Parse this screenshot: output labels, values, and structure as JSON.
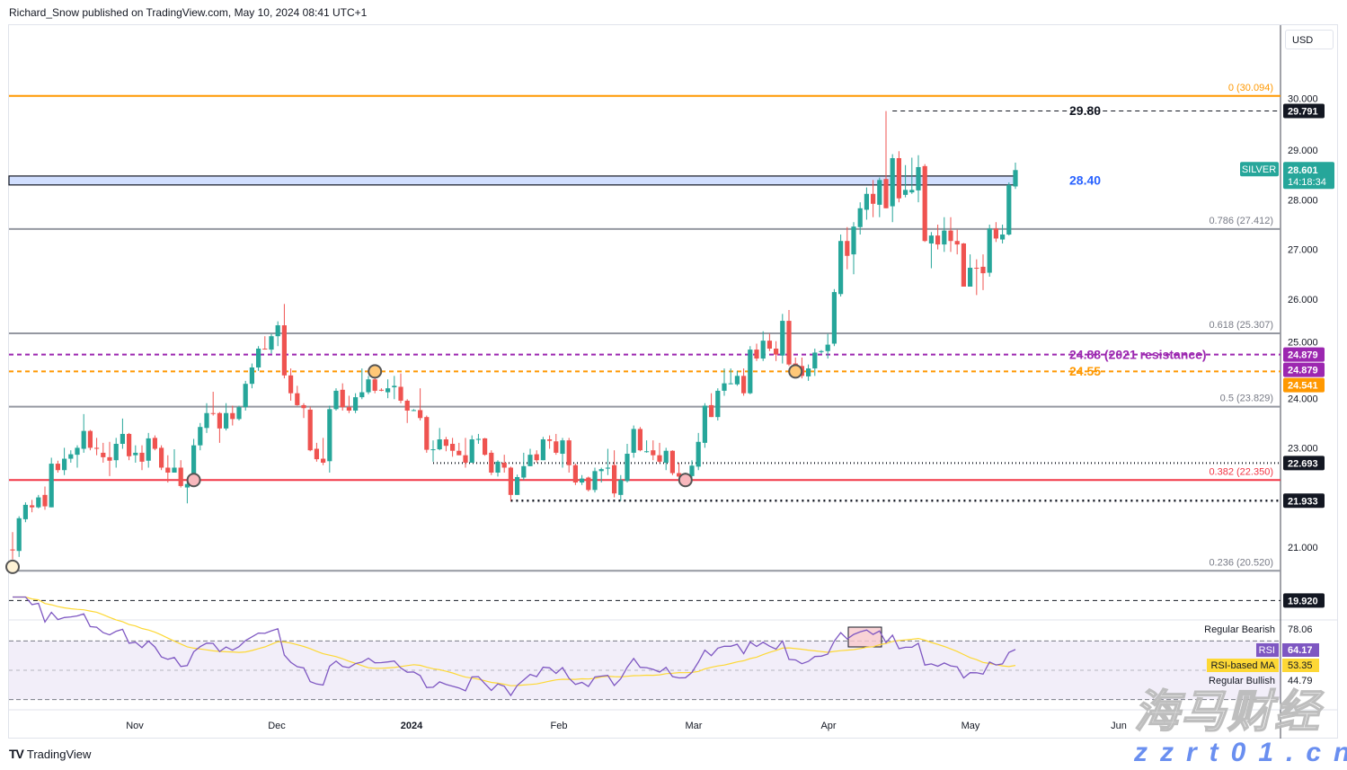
{
  "header": {
    "text": "Richard_Snow published on TradingView.com, May 10, 2024 08:41 UTC+1"
  },
  "footer": {
    "logo": "TV",
    "brand": "TradingView"
  },
  "currency": "USD",
  "watermark": {
    "line1": "海马财经",
    "line2": "zzrt01.cn"
  },
  "chart_data": [
    {
      "type": "candlestick",
      "symbol": "SILVER",
      "last_price": "28.601",
      "countdown": "14:18:34",
      "colors": {
        "up": "#26a69a",
        "down": "#ef5350"
      },
      "y_ticks": [
        "30.000",
        "29.000",
        "28.000",
        "27.000",
        "26.000",
        "25.000",
        "24.000",
        "23.000",
        "21.000"
      ],
      "x_ticks": [
        {
          "label": "Nov",
          "bold": false
        },
        {
          "label": "Dec",
          "bold": false
        },
        {
          "label": "2024",
          "bold": true
        },
        {
          "label": "Feb",
          "bold": false
        },
        {
          "label": "Mar",
          "bold": false
        },
        {
          "label": "Apr",
          "bold": false
        },
        {
          "label": "May",
          "bold": false
        },
        {
          "label": "Jun",
          "bold": false
        }
      ],
      "ohlc_fields": [
        "open",
        "high",
        "low",
        "close"
      ],
      "candles": [
        [
          20.95,
          21.3,
          20.75,
          20.93
        ],
        [
          20.92,
          21.62,
          20.8,
          21.58
        ],
        [
          21.56,
          21.9,
          21.5,
          21.85
        ],
        [
          21.84,
          21.95,
          21.7,
          21.8
        ],
        [
          21.8,
          22.05,
          21.78,
          22.0
        ],
        [
          22.05,
          22.22,
          21.75,
          21.82
        ],
        [
          21.8,
          22.8,
          21.8,
          22.68
        ],
        [
          22.68,
          22.74,
          22.5,
          22.55
        ],
        [
          22.55,
          23.0,
          22.45,
          22.78
        ],
        [
          22.78,
          22.95,
          22.7,
          22.87
        ],
        [
          22.86,
          23.05,
          22.6,
          23.0
        ],
        [
          22.98,
          23.68,
          22.9,
          23.34
        ],
        [
          23.34,
          23.36,
          22.95,
          23.0
        ],
        [
          23.0,
          23.2,
          22.85,
          22.98
        ],
        [
          22.9,
          23.1,
          22.7,
          22.81
        ],
        [
          22.81,
          23.12,
          22.43,
          22.74
        ],
        [
          22.75,
          23.2,
          22.6,
          23.08
        ],
        [
          23.08,
          23.59,
          22.98,
          23.28
        ],
        [
          23.28,
          23.3,
          22.75,
          22.83
        ],
        [
          22.85,
          23.05,
          22.7,
          22.9
        ],
        [
          22.9,
          23.05,
          22.55,
          22.72
        ],
        [
          22.74,
          23.3,
          22.6,
          23.19
        ],
        [
          23.2,
          23.25,
          22.95,
          22.98
        ],
        [
          23.0,
          23.05,
          22.55,
          22.6
        ],
        [
          22.6,
          22.85,
          22.3,
          22.5
        ],
        [
          22.5,
          22.97,
          22.5,
          22.6
        ],
        [
          22.6,
          22.75,
          22.2,
          22.23
        ],
        [
          22.2,
          22.35,
          21.88,
          22.27
        ],
        [
          22.25,
          23.18,
          22.25,
          23.05
        ],
        [
          23.05,
          23.5,
          22.95,
          23.42
        ],
        [
          23.4,
          23.9,
          23.3,
          23.7
        ],
        [
          23.7,
          24.13,
          23.65,
          23.69
        ],
        [
          23.7,
          23.72,
          23.1,
          23.39
        ],
        [
          23.39,
          23.9,
          23.35,
          23.7
        ],
        [
          23.7,
          23.85,
          23.45,
          23.58
        ],
        [
          23.58,
          23.85,
          23.55,
          23.82
        ],
        [
          23.82,
          24.35,
          23.75,
          24.29
        ],
        [
          24.29,
          24.7,
          24.2,
          24.62
        ],
        [
          24.62,
          25.05,
          24.55,
          25.0
        ],
        [
          25.0,
          25.25,
          24.98,
          24.99
        ],
        [
          24.98,
          25.3,
          24.9,
          25.25
        ],
        [
          25.25,
          25.55,
          25.05,
          25.47
        ],
        [
          25.47,
          25.9,
          24.4,
          24.46
        ],
        [
          24.46,
          24.6,
          23.95,
          24.1
        ],
        [
          24.1,
          24.25,
          23.85,
          23.86
        ],
        [
          23.86,
          23.9,
          23.6,
          23.8
        ],
        [
          23.77,
          23.83,
          22.93,
          22.95
        ],
        [
          22.98,
          23.1,
          22.72,
          22.77
        ],
        [
          22.78,
          23.2,
          22.65,
          22.7
        ],
        [
          22.73,
          23.85,
          22.5,
          23.78
        ],
        [
          23.78,
          24.2,
          23.75,
          24.15
        ],
        [
          24.17,
          24.3,
          23.75,
          23.82
        ],
        [
          23.82,
          24.05,
          23.7,
          23.75
        ],
        [
          23.75,
          24.1,
          23.7,
          24.02
        ],
        [
          24.02,
          24.6,
          23.98,
          24.12
        ],
        [
          24.12,
          24.45,
          24.08,
          24.38
        ],
        [
          24.38,
          24.44,
          24.1,
          24.15
        ],
        [
          24.17,
          24.2,
          24.14,
          24.16
        ],
        [
          24.12,
          24.38,
          24.0,
          24.2
        ],
        [
          24.22,
          24.45,
          23.98,
          24.25
        ],
        [
          24.23,
          24.5,
          23.9,
          23.95
        ],
        [
          23.95,
          23.98,
          23.5,
          23.75
        ],
        [
          23.76,
          23.78,
          23.74,
          23.76
        ],
        [
          23.76,
          24.2,
          23.55,
          23.6
        ],
        [
          23.62,
          23.65,
          22.9,
          22.96
        ],
        [
          22.97,
          23.15,
          22.72,
          22.97
        ],
        [
          22.97,
          23.4,
          22.95,
          23.17
        ],
        [
          23.17,
          23.22,
          22.93,
          23.04
        ],
        [
          23.08,
          23.2,
          22.82,
          22.94
        ],
        [
          22.94,
          23.1,
          22.85,
          22.85
        ],
        [
          22.85,
          23.2,
          22.6,
          22.7
        ],
        [
          22.7,
          23.25,
          22.7,
          23.17
        ],
        [
          23.16,
          23.28,
          23.08,
          23.18
        ],
        [
          23.19,
          23.2,
          22.84,
          22.86
        ],
        [
          22.9,
          22.95,
          22.45,
          22.5
        ],
        [
          22.5,
          22.75,
          22.42,
          22.72
        ],
        [
          22.7,
          22.86,
          22.5,
          22.6
        ],
        [
          22.6,
          22.62,
          21.93,
          22.05
        ],
        [
          22.05,
          22.46,
          22.05,
          22.41
        ],
        [
          22.4,
          22.9,
          22.35,
          22.63
        ],
        [
          22.63,
          22.98,
          22.63,
          22.86
        ],
        [
          22.87,
          22.95,
          22.7,
          22.75
        ],
        [
          22.75,
          23.22,
          22.75,
          23.17
        ],
        [
          23.17,
          23.25,
          22.98,
          23.14
        ],
        [
          23.13,
          23.28,
          22.86,
          22.9
        ],
        [
          22.88,
          23.2,
          22.6,
          23.15
        ],
        [
          23.15,
          23.2,
          22.5,
          22.65
        ],
        [
          22.65,
          22.68,
          22.25,
          22.3
        ],
        [
          22.3,
          22.45,
          22.25,
          22.38
        ],
        [
          22.4,
          22.42,
          22.12,
          22.15
        ],
        [
          22.15,
          22.6,
          22.1,
          22.53
        ],
        [
          22.53,
          22.6,
          22.3,
          22.57
        ],
        [
          22.58,
          22.98,
          22.45,
          22.6
        ],
        [
          22.65,
          22.95,
          22.0,
          22.08
        ],
        [
          22.05,
          22.45,
          21.93,
          22.35
        ],
        [
          22.33,
          23.08,
          22.3,
          22.88
        ],
        [
          22.9,
          23.45,
          22.8,
          23.38
        ],
        [
          23.38,
          23.42,
          22.93,
          22.95
        ],
        [
          22.93,
          23.15,
          22.9,
          22.93
        ],
        [
          22.95,
          23.15,
          22.75,
          22.85
        ],
        [
          22.85,
          23.1,
          22.7,
          22.72
        ],
        [
          22.7,
          23.0,
          22.55,
          22.94
        ],
        [
          22.94,
          22.95,
          22.45,
          22.49
        ],
        [
          22.49,
          22.7,
          22.4,
          22.42
        ],
        [
          22.43,
          22.5,
          22.4,
          22.43
        ],
        [
          22.43,
          22.75,
          22.33,
          22.64
        ],
        [
          22.62,
          23.3,
          22.55,
          23.12
        ],
        [
          23.1,
          23.9,
          23.0,
          23.85
        ],
        [
          23.86,
          24.1,
          23.62,
          23.62
        ],
        [
          23.62,
          24.2,
          23.55,
          24.15
        ],
        [
          24.15,
          24.6,
          24.05,
          24.3
        ],
        [
          24.3,
          24.6,
          24.28,
          24.3
        ],
        [
          24.28,
          24.55,
          24.25,
          24.45
        ],
        [
          24.45,
          24.6,
          24.05,
          24.1
        ],
        [
          24.1,
          25.05,
          24.08,
          24.98
        ],
        [
          24.98,
          25.1,
          24.75,
          24.8
        ],
        [
          24.8,
          25.35,
          24.75,
          25.16
        ],
        [
          25.16,
          25.3,
          24.95,
          25.0
        ],
        [
          25.0,
          25.15,
          24.75,
          24.88
        ],
        [
          24.86,
          25.7,
          24.7,
          25.56
        ],
        [
          25.56,
          25.78,
          24.65,
          24.68
        ],
        [
          24.7,
          24.82,
          24.5,
          24.65
        ],
        [
          24.65,
          24.82,
          24.4,
          24.45
        ],
        [
          24.44,
          24.68,
          24.35,
          24.6
        ],
        [
          24.6,
          25.0,
          24.45,
          24.92
        ],
        [
          24.93,
          24.97,
          24.9,
          24.95
        ],
        [
          24.95,
          25.3,
          24.8,
          25.08
        ],
        [
          25.1,
          26.2,
          25.05,
          26.14
        ],
        [
          26.1,
          27.3,
          26.05,
          27.17
        ],
        [
          27.17,
          27.45,
          26.6,
          26.87
        ],
        [
          26.9,
          27.55,
          26.5,
          27.46
        ],
        [
          27.45,
          27.95,
          27.3,
          27.83
        ],
        [
          27.8,
          28.25,
          27.6,
          28.12
        ],
        [
          28.12,
          28.4,
          27.65,
          27.92
        ],
        [
          27.9,
          28.45,
          27.65,
          28.4
        ],
        [
          28.42,
          29.79,
          27.83,
          27.83
        ],
        [
          27.87,
          28.92,
          27.55,
          28.84
        ],
        [
          28.84,
          28.98,
          27.95,
          28.03
        ],
        [
          28.1,
          28.7,
          28.05,
          28.2
        ],
        [
          28.15,
          28.85,
          28.12,
          28.2
        ],
        [
          28.19,
          28.9,
          27.95,
          28.66
        ],
        [
          28.68,
          28.72,
          27.15,
          27.17
        ],
        [
          27.12,
          27.35,
          26.62,
          27.28
        ],
        [
          27.28,
          27.5,
          27.0,
          27.1
        ],
        [
          27.1,
          27.65,
          26.95,
          27.38
        ],
        [
          27.38,
          27.65,
          26.95,
          27.17
        ],
        [
          27.17,
          27.4,
          26.9,
          27.1
        ],
        [
          27.12,
          27.13,
          26.25,
          26.25
        ],
        [
          26.25,
          26.9,
          26.25,
          26.63
        ],
        [
          26.63,
          26.8,
          26.08,
          26.62
        ],
        [
          26.65,
          26.9,
          26.18,
          26.52
        ],
        [
          26.53,
          27.5,
          26.45,
          27.42
        ],
        [
          27.42,
          27.55,
          27.15,
          27.22
        ],
        [
          27.2,
          27.5,
          27.12,
          27.3
        ],
        [
          27.3,
          28.35,
          27.28,
          28.3
        ],
        [
          28.27,
          28.75,
          28.22,
          28.6
        ]
      ],
      "levels": [
        {
          "price": 30.094,
          "label": "0 (30.094)",
          "style": "solid",
          "color": "#ff9800",
          "kind": "fib"
        },
        {
          "price": 27.412,
          "label": "0.786 (27.412)",
          "style": "solid",
          "color": "#9598a1",
          "kind": "fib"
        },
        {
          "price": 25.307,
          "label": "0.618 (25.307)",
          "style": "solid",
          "color": "#9598a1",
          "kind": "fib"
        },
        {
          "price": 23.829,
          "label": "0.5 (23.829)",
          "style": "solid",
          "color": "#9598a1",
          "kind": "fib"
        },
        {
          "price": 22.35,
          "label": "0.382 (22.350)",
          "style": "solid",
          "color": "#f23645",
          "kind": "fib"
        },
        {
          "price": 20.52,
          "label": "0.236 (20.520)",
          "style": "solid",
          "color": "#9598a1",
          "kind": "fib"
        }
      ],
      "annotations": [
        {
          "text": "29.80",
          "color": "#131722",
          "price": 29.8
        },
        {
          "text": "28.40",
          "color": "#2962ff",
          "price": 28.4
        },
        {
          "text": "24.88 (2021 resistance)",
          "color": "#9c27b0",
          "price": 24.88
        },
        {
          "text": "24.55",
          "color": "#ff9800",
          "price": 24.55
        }
      ],
      "zone": {
        "label": "28.40",
        "top": 28.48,
        "bottom": 28.3,
        "color": "#d1dfff"
      },
      "price_tags": [
        {
          "text": "29.791",
          "bg": "#131722",
          "price": 29.791
        },
        {
          "text": "24.879",
          "bg": "#9c27b0",
          "price": 24.879
        },
        {
          "text": "24.879",
          "bg": "#9c27b0",
          "price": 24.879
        },
        {
          "text": "24.541",
          "bg": "#ff9800",
          "price": 24.541
        },
        {
          "text": "22.693",
          "bg": "#131722",
          "price": 22.693
        },
        {
          "text": "21.933",
          "bg": "#131722",
          "price": 21.933
        },
        {
          "text": "19.920",
          "bg": "#131722",
          "price": 19.92
        }
      ],
      "dashed_lines": [
        {
          "price": 29.791,
          "color": "#131722",
          "style": "dashed",
          "from_candle": 136
        },
        {
          "price": 24.879,
          "color": "#9c27b0",
          "style": "dashed",
          "from_candle": 0
        },
        {
          "price": 24.541,
          "color": "#ff9800",
          "style": "dashed",
          "from_candle": 0
        },
        {
          "price": 22.693,
          "color": "#131722",
          "style": "dotted",
          "from_candle": 65
        },
        {
          "price": 21.933,
          "color": "#131722",
          "style": "heavy-dotted",
          "from_candle": 77
        },
        {
          "price": 19.92,
          "color": "#131722",
          "style": "dashed",
          "from_candle": 0
        }
      ],
      "markers": [
        {
          "candle": 0,
          "price": 20.6,
          "color": "#fff3d6"
        },
        {
          "candle": 28,
          "price": 22.35,
          "color": "#f8b8bd"
        },
        {
          "candle": 56,
          "price": 24.54,
          "color": "#ffc878"
        },
        {
          "candle": 104,
          "price": 22.35,
          "color": "#f8b8bd"
        },
        {
          "candle": 121,
          "price": 24.54,
          "color": "#ffc878"
        }
      ]
    },
    {
      "type": "line",
      "indicator": "RSI",
      "rsi_label": "RSI",
      "rsi_value": "64.17",
      "rsi_color": "#7e57c2",
      "ma_label": "RSI-based MA",
      "ma_value": "53.35",
      "ma_color": "#fdd835",
      "bearish_label": "Regular Bearish",
      "bearish_value": "78.06",
      "bullish_label": "Regular Bullish",
      "bullish_value": "44.79",
      "upper_band": 70,
      "middle_band": 50,
      "lower_band": 30,
      "period": 14,
      "ma_period": 14
    }
  ]
}
